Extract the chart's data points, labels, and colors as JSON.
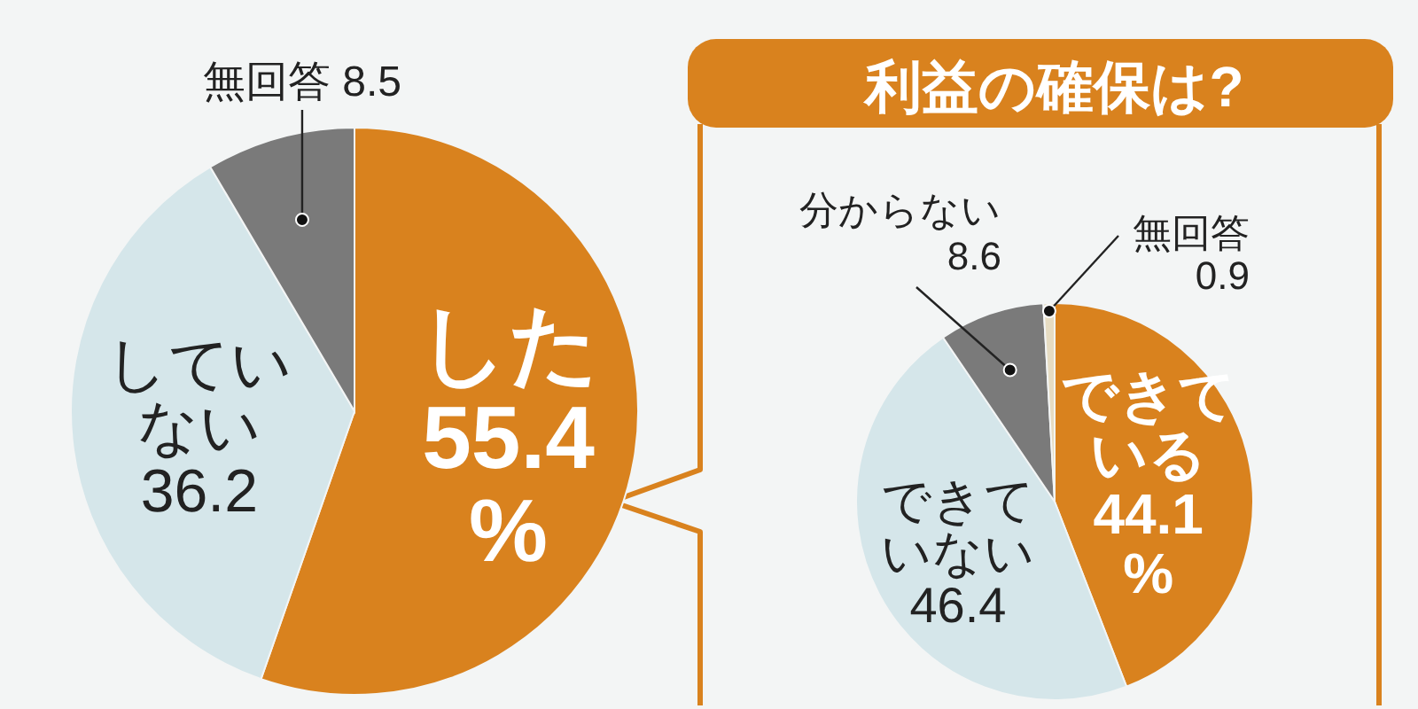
{
  "chart_data": [
    {
      "type": "pie",
      "categories": [
        "した",
        "していない",
        "無回答"
      ],
      "values": [
        55.4,
        36.2,
        8.5
      ],
      "colors": [
        "#d9821e",
        "#d5e6ea",
        "#7a7a7a"
      ],
      "value_labels": [
        "55.4%",
        "36.2",
        "8.5"
      ]
    },
    {
      "type": "pie",
      "title": "利益の確保は?",
      "categories": [
        "できている",
        "できていない",
        "分からない",
        "無回答"
      ],
      "values": [
        44.1,
        46.4,
        8.6,
        0.9
      ],
      "colors": [
        "#d9821e",
        "#d5e6ea",
        "#7a7a7a",
        "#e6dcc2"
      ],
      "value_labels": [
        "44.1%",
        "46.4",
        "8.6",
        "0.9"
      ]
    }
  ]
}
